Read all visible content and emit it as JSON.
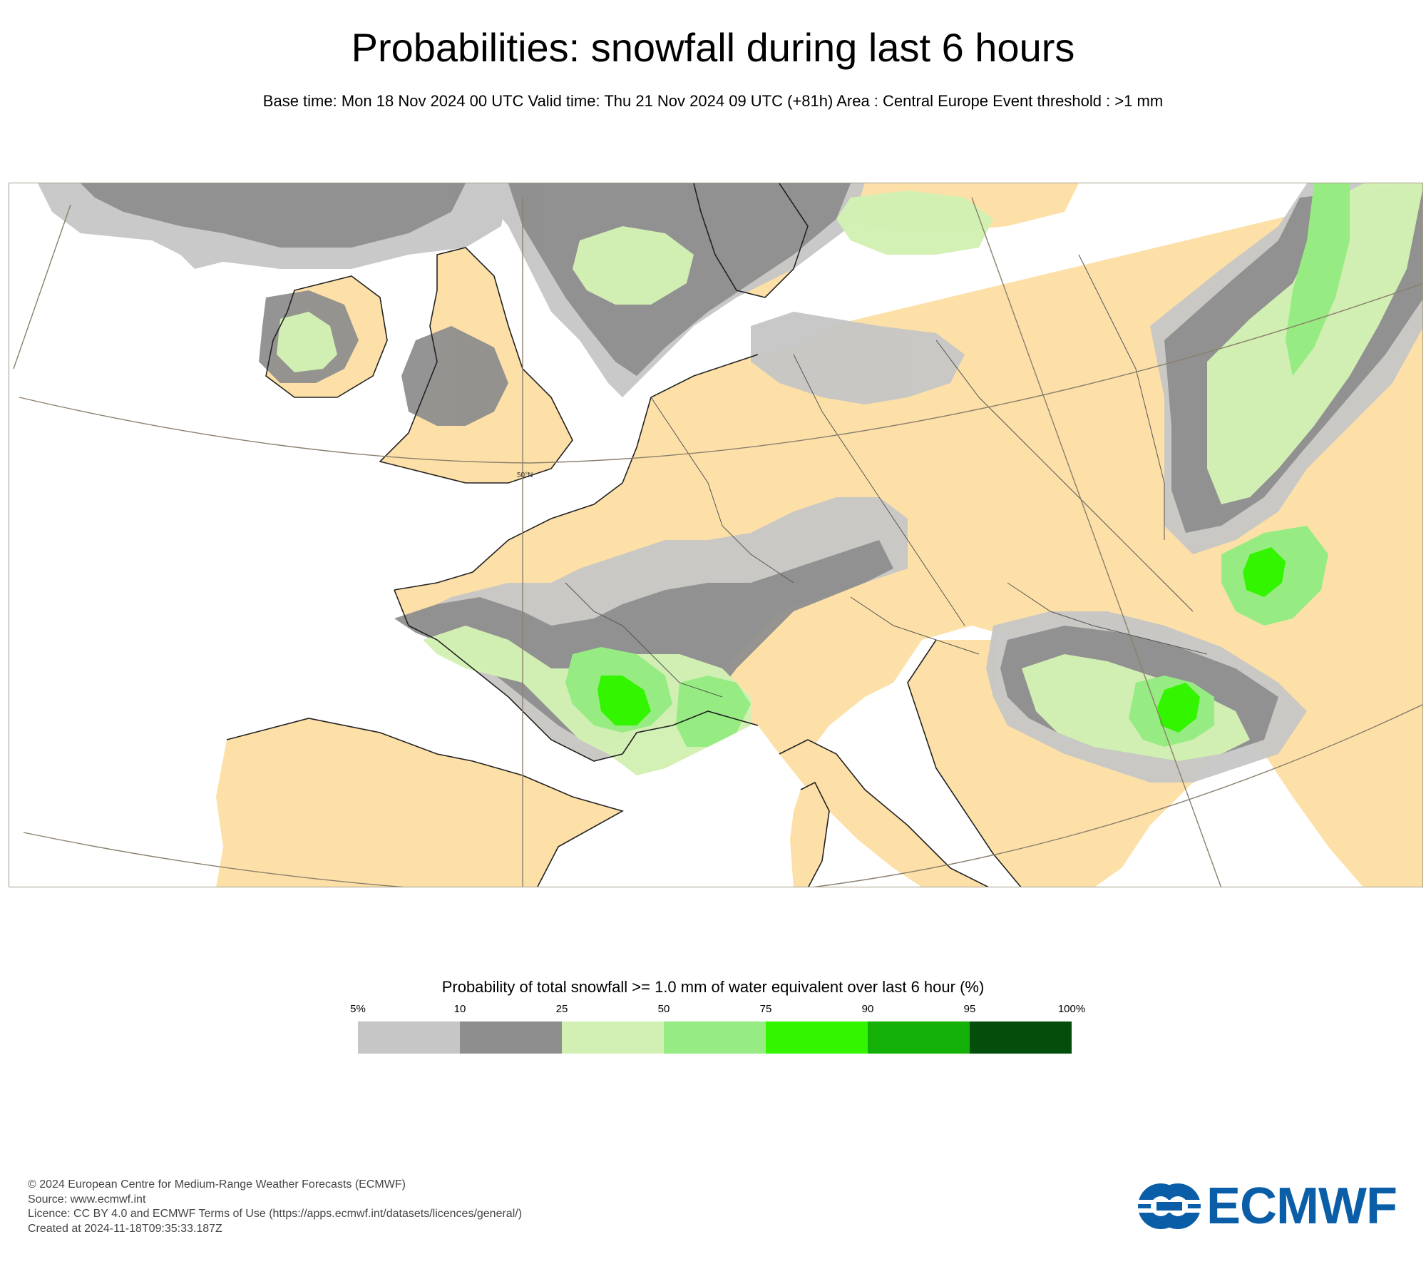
{
  "title": "Probabilities: snowfall during last 6 hours",
  "subtitle": "Base time: Mon 18 Nov 2024 00 UTC Valid time: Thu 21 Nov 2024 09 UTC (+81h) Area : Central Europe Event threshold : >1 mm",
  "map": {
    "region": "Central Europe",
    "latitude_label": "50°N",
    "land_color": "#fde0a8",
    "sea_color": "#ffffff",
    "coastline_color": "#222222",
    "graticule_color": "#8a7f6c"
  },
  "legend": {
    "title": "Probability of total snowfall >= 1.0 mm of water equivalent over last 6 hour (%)",
    "ticks": [
      "5%",
      "10",
      "25",
      "50",
      "75",
      "90",
      "95",
      "100%"
    ],
    "colors": [
      "#c6c6c6",
      "#8e8e8e",
      "#d2f0b4",
      "#96ec82",
      "#33f500",
      "#13b007",
      "#044d0b"
    ]
  },
  "footer": {
    "lines": [
      "© 2024 European Centre for Medium-Range Weather Forecasts (ECMWF)",
      "Source: www.ecmwf.int",
      "Licence: CC BY 4.0 and ECMWF Terms of Use (https://apps.ecmwf.int/datasets/licences/general/)",
      "Created at 2024-11-18T09:35:33.187Z"
    ]
  },
  "logo": {
    "text": "ECMWF",
    "color": "#0a5ea8",
    "icon": "ecmwf-logo-icon"
  }
}
